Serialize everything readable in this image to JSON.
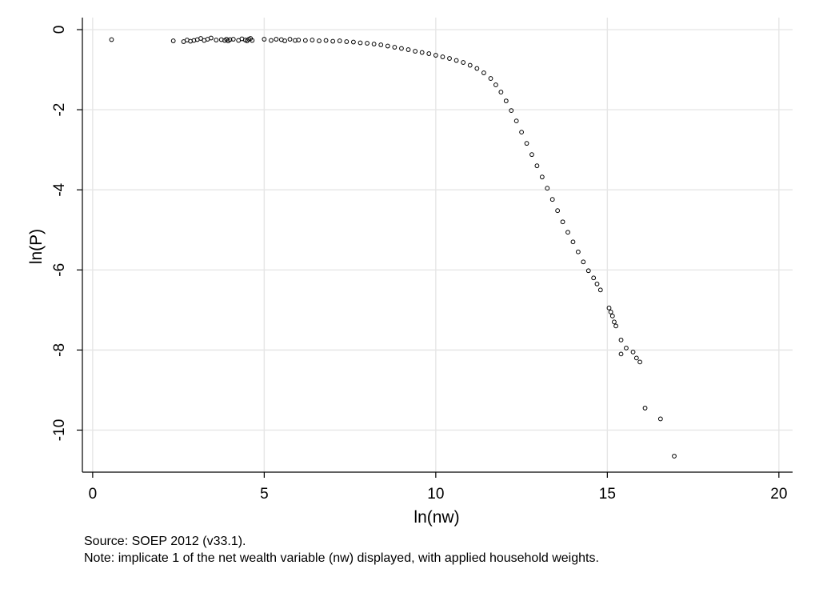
{
  "chart_data": {
    "type": "scatter",
    "title": "",
    "xlabel": "ln(nw)",
    "ylabel": "ln(P)",
    "xlim": [
      -0.3,
      20.4
    ],
    "ylim": [
      -11.05,
      0.3
    ],
    "xticks": [
      0,
      5,
      10,
      15,
      20
    ],
    "yticks": [
      0,
      -2,
      -4,
      -6,
      -8,
      -10
    ],
    "xtick_labels": [
      "0",
      "5",
      "10",
      "15",
      "20"
    ],
    "ytick_labels": [
      "0",
      "-2",
      "-4",
      "-6",
      "-8",
      "-10"
    ],
    "grid": true,
    "marker": "hollow-circle",
    "series": [
      {
        "name": "",
        "points": [
          [
            0.55,
            -0.25
          ],
          [
            2.35,
            -0.28
          ],
          [
            2.65,
            -0.3
          ],
          [
            2.75,
            -0.26
          ],
          [
            2.85,
            -0.29
          ],
          [
            2.95,
            -0.27
          ],
          [
            3.05,
            -0.25
          ],
          [
            3.15,
            -0.22
          ],
          [
            3.25,
            -0.27
          ],
          [
            3.35,
            -0.24
          ],
          [
            3.45,
            -0.21
          ],
          [
            3.6,
            -0.26
          ],
          [
            3.75,
            -0.25
          ],
          [
            3.85,
            -0.27
          ],
          [
            3.9,
            -0.24
          ],
          [
            3.95,
            -0.28
          ],
          [
            4.0,
            -0.25
          ],
          [
            4.1,
            -0.24
          ],
          [
            4.25,
            -0.27
          ],
          [
            4.35,
            -0.23
          ],
          [
            4.45,
            -0.26
          ],
          [
            4.5,
            -0.28
          ],
          [
            4.55,
            -0.24
          ],
          [
            4.6,
            -0.22
          ],
          [
            4.65,
            -0.27
          ],
          [
            5.0,
            -0.24
          ],
          [
            5.2,
            -0.27
          ],
          [
            5.35,
            -0.24
          ],
          [
            5.5,
            -0.25
          ],
          [
            5.6,
            -0.28
          ],
          [
            5.75,
            -0.24
          ],
          [
            5.9,
            -0.27
          ],
          [
            6.0,
            -0.26
          ],
          [
            6.2,
            -0.27
          ],
          [
            6.4,
            -0.26
          ],
          [
            6.6,
            -0.28
          ],
          [
            6.8,
            -0.27
          ],
          [
            7.0,
            -0.29
          ],
          [
            7.2,
            -0.28
          ],
          [
            7.4,
            -0.3
          ],
          [
            7.6,
            -0.31
          ],
          [
            7.8,
            -0.33
          ],
          [
            8.0,
            -0.34
          ],
          [
            8.2,
            -0.36
          ],
          [
            8.4,
            -0.38
          ],
          [
            8.6,
            -0.41
          ],
          [
            8.8,
            -0.44
          ],
          [
            9.0,
            -0.47
          ],
          [
            9.2,
            -0.5
          ],
          [
            9.4,
            -0.54
          ],
          [
            9.6,
            -0.57
          ],
          [
            9.8,
            -0.6
          ],
          [
            10.0,
            -0.64
          ],
          [
            10.2,
            -0.68
          ],
          [
            10.4,
            -0.72
          ],
          [
            10.6,
            -0.77
          ],
          [
            10.8,
            -0.82
          ],
          [
            11.0,
            -0.89
          ],
          [
            11.2,
            -0.97
          ],
          [
            11.4,
            -1.08
          ],
          [
            11.6,
            -1.22
          ],
          [
            11.75,
            -1.38
          ],
          [
            11.9,
            -1.56
          ],
          [
            12.05,
            -1.78
          ],
          [
            12.2,
            -2.02
          ],
          [
            12.35,
            -2.28
          ],
          [
            12.5,
            -2.56
          ],
          [
            12.65,
            -2.84
          ],
          [
            12.8,
            -3.12
          ],
          [
            12.95,
            -3.4
          ],
          [
            13.1,
            -3.68
          ],
          [
            13.25,
            -3.96
          ],
          [
            13.4,
            -4.24
          ],
          [
            13.55,
            -4.52
          ],
          [
            13.7,
            -4.8
          ],
          [
            13.85,
            -5.06
          ],
          [
            14.0,
            -5.3
          ],
          [
            14.15,
            -5.55
          ],
          [
            14.3,
            -5.8
          ],
          [
            14.45,
            -6.02
          ],
          [
            14.6,
            -6.2
          ],
          [
            14.7,
            -6.35
          ],
          [
            14.8,
            -6.5
          ],
          [
            15.05,
            -6.95
          ],
          [
            15.1,
            -7.05
          ],
          [
            15.15,
            -7.15
          ],
          [
            15.2,
            -7.3
          ],
          [
            15.25,
            -7.4
          ],
          [
            15.4,
            -7.75
          ],
          [
            15.55,
            -7.95
          ],
          [
            15.4,
            -8.1
          ],
          [
            15.75,
            -8.05
          ],
          [
            15.85,
            -8.2
          ],
          [
            15.95,
            -8.3
          ],
          [
            16.1,
            -9.45
          ],
          [
            16.55,
            -9.72
          ],
          [
            16.95,
            -10.65
          ]
        ]
      }
    ]
  },
  "notes": {
    "source": "Source: SOEP 2012 (v33.1).",
    "detail": "Note: implicate 1 of the net wealth variable (nw) displayed, with applied household weights."
  }
}
